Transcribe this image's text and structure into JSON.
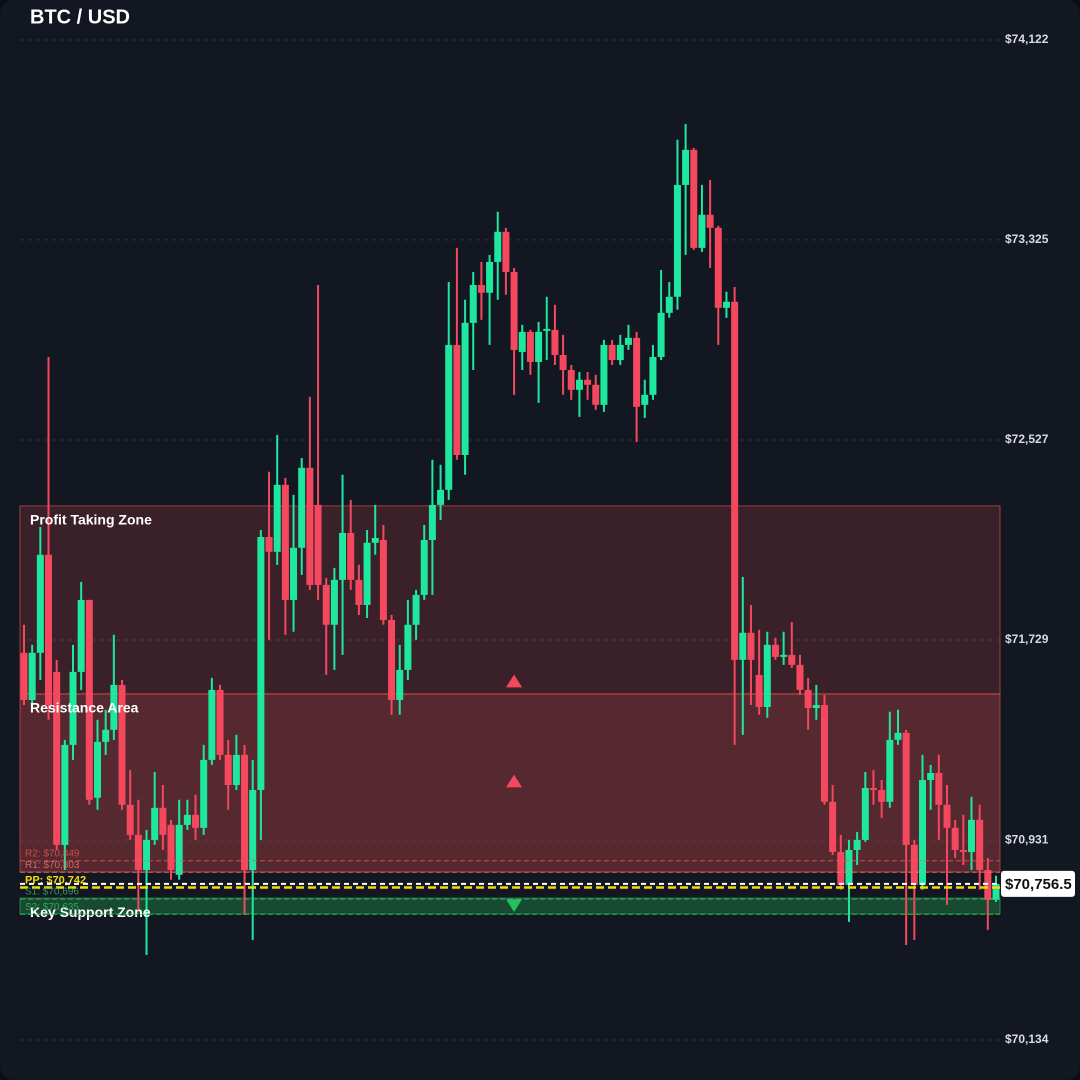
{
  "chart_data": {
    "type": "candlestick",
    "title": "BTC / USD",
    "ylim": [
      70134,
      74122
    ],
    "yticks": [
      {
        "value": 74122,
        "label": "$74,122"
      },
      {
        "value": 73325,
        "label": "$73,325"
      },
      {
        "value": 72527,
        "label": "$72,527"
      },
      {
        "value": 71729,
        "label": "$71,729"
      },
      {
        "value": 70931,
        "label": "$70,931"
      },
      {
        "value": 70134,
        "label": "$70,134"
      }
    ],
    "grid": true,
    "up_color": "#1ee8a0",
    "down_color": "#f4485e",
    "open": [
      71678,
      71490,
      71678,
      72069,
      71602,
      70912,
      71311,
      71602,
      71889,
      71100,
      71323,
      71371,
      71550,
      71072,
      70952,
      70812,
      70932,
      71060,
      70992,
      70793,
      70992,
      71032,
      70980,
      71251,
      71530,
      71271,
      71151,
      71271,
      70812,
      71131,
      72140,
      72081,
      72348,
      71889,
      72097,
      72416,
      72268,
      71949,
      71790,
      71969,
      72156,
      71969,
      71869,
      72117,
      72128,
      71809,
      71490,
      71610,
      71790,
      71909,
      72128,
      72268,
      72328,
      72906,
      72467,
      72994,
      73145,
      73114,
      73237,
      73357,
      73197,
      72878,
      72958,
      72838,
      72962,
      72966,
      72866,
      72806,
      72727,
      72767,
      72747,
      72667,
      72906,
      72846,
      72906,
      72934,
      72667,
      72707,
      72858,
      73034,
      73098,
      73544,
      73684,
      73293,
      73425,
      73373,
      73054,
      73078,
      71650,
      71758,
      71590,
      71462,
      71710,
      71662,
      71670,
      71630,
      71530,
      71458,
      71470,
      71084,
      70884,
      70753,
      70892,
      70932,
      71139,
      71131,
      71084,
      71331,
      71359,
      70912,
      70753,
      71171,
      71199,
      71072,
      70980,
      70892,
      70884,
      71012,
      70812,
      70693
    ],
    "high": [
      71790,
      71710,
      72180,
      72858,
      71650,
      71331,
      71710,
      71961,
      71889,
      71411,
      71451,
      71750,
      71570,
      71211,
      71092,
      70972,
      71203,
      71151,
      71012,
      71092,
      71092,
      71112,
      71311,
      71578,
      71550,
      71331,
      71351,
      71311,
      71251,
      72168,
      72400,
      72547,
      72376,
      72308,
      72455,
      72699,
      73145,
      71977,
      72017,
      72388,
      72288,
      72029,
      72168,
      72268,
      72188,
      71829,
      71710,
      71889,
      71929,
      72188,
      72448,
      72428,
      73157,
      73293,
      73086,
      73197,
      73237,
      73265,
      73437,
      73373,
      73213,
      72986,
      72966,
      72998,
      73098,
      73066,
      72946,
      72826,
      72798,
      72798,
      72787,
      72926,
      72926,
      72946,
      72986,
      72958,
      72767,
      72906,
      73205,
      73157,
      73724,
      73787,
      73692,
      73544,
      73564,
      73381,
      73118,
      73137,
      71981,
      71869,
      71770,
      71762,
      71738,
      71762,
      71801,
      71670,
      71578,
      71550,
      71510,
      71151,
      70952,
      70932,
      70964,
      71203,
      71211,
      71171,
      71443,
      71451,
      71371,
      70932,
      71271,
      71231,
      71271,
      71151,
      71012,
      71032,
      71104,
      71072,
      70860,
      70789
    ],
    "low": [
      71470,
      71470,
      71570,
      71411,
      70892,
      70812,
      71251,
      71530,
      71072,
      71052,
      71271,
      71331,
      71052,
      70932,
      70653,
      70473,
      70912,
      70892,
      70773,
      70773,
      70972,
      70932,
      70952,
      71231,
      71251,
      71052,
      71131,
      70633,
      70533,
      70932,
      71730,
      72029,
      71750,
      71762,
      71989,
      71929,
      71889,
      71590,
      71610,
      71670,
      71929,
      71829,
      71817,
      72069,
      71790,
      71431,
      71431,
      71570,
      71730,
      71889,
      71909,
      72208,
      72288,
      72448,
      72388,
      72806,
      73006,
      72906,
      73086,
      73106,
      72707,
      72806,
      72787,
      72675,
      72846,
      72826,
      72707,
      72687,
      72619,
      72687,
      72647,
      72639,
      72826,
      72826,
      72886,
      72519,
      72615,
      72687,
      72846,
      73014,
      73046,
      73265,
      73285,
      73277,
      73213,
      72906,
      73014,
      71311,
      71351,
      71470,
      71431,
      71419,
      71650,
      71630,
      71618,
      71510,
      71371,
      71411,
      71072,
      70872,
      70733,
      70605,
      70832,
      70924,
      71072,
      71020,
      71060,
      71311,
      70513,
      70533,
      70733,
      71052,
      70932,
      70673,
      70860,
      70832,
      70812,
      70733,
      70573,
      70685
    ],
    "close": [
      71490,
      71678,
      72069,
      71470,
      70912,
      71311,
      71602,
      71889,
      71092,
      71323,
      71371,
      71550,
      71072,
      70952,
      70812,
      70932,
      71060,
      70952,
      70812,
      70992,
      71032,
      70980,
      71251,
      71530,
      71271,
      71151,
      71271,
      70812,
      71131,
      72140,
      72081,
      72348,
      71889,
      72097,
      72416,
      71949,
      71949,
      71790,
      71969,
      72156,
      71969,
      71869,
      72117,
      72136,
      71809,
      71490,
      71610,
      71790,
      71909,
      72128,
      72268,
      72328,
      72906,
      72467,
      72994,
      73145,
      73114,
      73237,
      73357,
      73197,
      72886,
      72958,
      72838,
      72958,
      72970,
      72866,
      72806,
      72727,
      72767,
      72747,
      72667,
      72906,
      72846,
      72906,
      72934,
      72659,
      72707,
      72858,
      73034,
      73098,
      73544,
      73684,
      73293,
      73425,
      73373,
      73054,
      73078,
      71650,
      71758,
      71650,
      71462,
      71710,
      71662,
      71670,
      71630,
      71530,
      71458,
      71470,
      71084,
      70884,
      70753,
      70892,
      70932,
      71139,
      71131,
      71084,
      71331,
      71359,
      70912,
      70753,
      71171,
      71199,
      71072,
      70980,
      70892,
      70884,
      71012,
      70812,
      70693,
      70756.5
    ],
    "zones": [
      {
        "label": "Profit Taking Zone",
        "from": 71514,
        "to": 72264,
        "color": "#ef5350"
      },
      {
        "label": "Resistance Area",
        "from": 70804,
        "to": 71514,
        "color": "#ef5350"
      },
      {
        "label": "Key Support Zone",
        "from": 70637,
        "to": 70700,
        "color": "#26c15b"
      }
    ],
    "levels": [
      {
        "label": "R2: $70,849",
        "value": 70849,
        "color": "#ef5350"
      },
      {
        "label": "R1: $70,803",
        "value": 70803,
        "color": "#ef7a6a"
      },
      {
        "label": "PP: $70,742",
        "value": 70742,
        "color": "#f5d90a"
      },
      {
        "label": "S1: $70,696",
        "value": 70696,
        "color": "#3cb768"
      },
      {
        "label": "S2: $70,635",
        "value": 70635,
        "color": "#3cb768"
      }
    ],
    "markers": [
      {
        "x": 60,
        "value": 71566,
        "direction": "up",
        "color": "#f4485e"
      },
      {
        "x": 60,
        "value": 71167,
        "direction": "up",
        "color": "#f4485e"
      },
      {
        "x": 60,
        "value": 70670,
        "direction": "down",
        "color": "#26c15b"
      }
    ],
    "current_price": {
      "value": 70756.5,
      "label": "$70,756.5"
    }
  }
}
